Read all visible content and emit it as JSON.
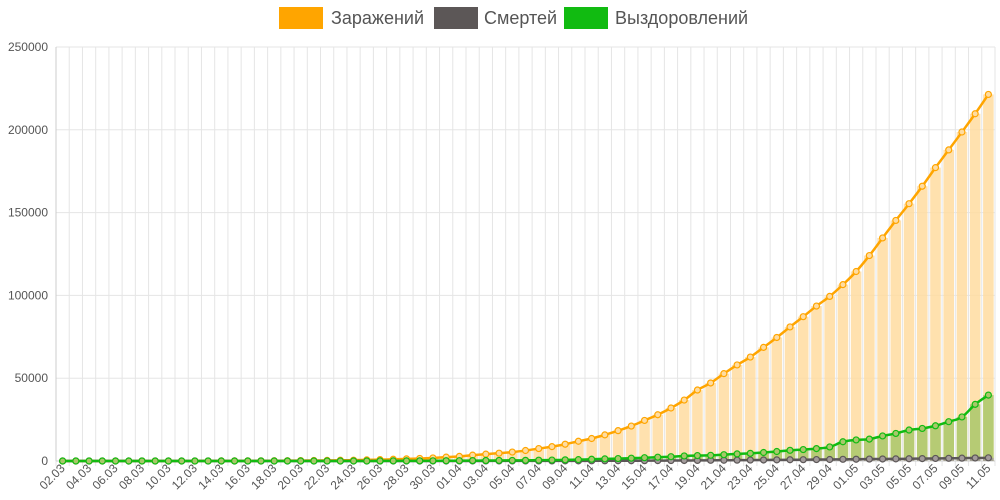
{
  "chart_data": {
    "type": "line",
    "title": "",
    "xlabel": "",
    "ylabel": "",
    "ylim": [
      0,
      250000
    ],
    "y_ticks": [
      0,
      50000,
      100000,
      150000,
      200000,
      250000
    ],
    "y_tick_labels": [
      "0",
      "50000",
      "100000",
      "150000",
      "200000",
      "250000"
    ],
    "grid": true,
    "legend_position": "top-center",
    "categories": [
      "02.03",
      "03.03",
      "04.03",
      "05.03",
      "06.03",
      "07.03",
      "08.03",
      "09.03",
      "10.03",
      "11.03",
      "12.03",
      "13.03",
      "14.03",
      "15.03",
      "16.03",
      "17.03",
      "18.03",
      "19.03",
      "20.03",
      "21.03",
      "22.03",
      "23.03",
      "24.03",
      "25.03",
      "26.03",
      "27.03",
      "28.03",
      "29.03",
      "30.03",
      "31.03",
      "01.04",
      "02.04",
      "03.04",
      "04.04",
      "05.04",
      "06.04",
      "07.04",
      "08.04",
      "09.04",
      "10.04",
      "11.04",
      "12.04",
      "13.04",
      "14.04",
      "15.04",
      "16.04",
      "17.04",
      "18.04",
      "19.04",
      "20.04",
      "21.04",
      "22.04",
      "23.04",
      "24.04",
      "25.04",
      "26.04",
      "27.04",
      "28.04",
      "29.04",
      "30.04",
      "01.05",
      "02.05",
      "03.05",
      "04.05",
      "05.05",
      "06.05",
      "07.05",
      "08.05",
      "09.05",
      "10.05",
      "11.05"
    ],
    "series": [
      {
        "name": "Заражений",
        "color": "#ffa500",
        "bar_color": "#ffdca0",
        "values": [
          3,
          3,
          3,
          3,
          4,
          10,
          14,
          17,
          20,
          28,
          34,
          45,
          59,
          63,
          93,
          114,
          147,
          199,
          253,
          306,
          367,
          438,
          495,
          658,
          840,
          1036,
          1264,
          1534,
          1836,
          2337,
          2777,
          3548,
          4149,
          4731,
          5389,
          6343,
          7497,
          8672,
          10131,
          11917,
          13584,
          15770,
          18328,
          21102,
          24490,
          27938,
          32008,
          36793,
          42853,
          47121,
          52763,
          57999,
          62773,
          68622,
          74588,
          80949,
          87147,
          93558,
          99399,
          106498,
          114431,
          124054,
          134687,
          145268,
          155370,
          165929,
          177160,
          187859,
          198676,
          209688,
          221344
        ]
      },
      {
        "name": "Смертей",
        "color": "#5c5757",
        "bar_color": "#a39b9b",
        "values": [
          0,
          0,
          0,
          0,
          0,
          0,
          0,
          0,
          0,
          0,
          0,
          0,
          0,
          0,
          0,
          0,
          0,
          0,
          1,
          1,
          1,
          1,
          1,
          3,
          3,
          4,
          4,
          8,
          9,
          17,
          24,
          30,
          34,
          43,
          45,
          47,
          58,
          63,
          76,
          94,
          106,
          130,
          148,
          170,
          198,
          232,
          273,
          313,
          361,
          405,
          456,
          513,
          555,
          615,
          681,
          747,
          794,
          867,
          907,
          1014,
          1073,
          1169,
          1222,
          1280,
          1356,
          1451,
          1537,
          1625,
          1723,
          1827,
          1915
        ]
      },
      {
        "name": "Выздоровлений",
        "color": "#11bb11",
        "bar_color": "#a9c76a",
        "values": [
          0,
          0,
          0,
          0,
          0,
          0,
          0,
          0,
          0,
          0,
          0,
          0,
          0,
          0,
          0,
          0,
          0,
          0,
          0,
          0,
          0,
          0,
          0,
          0,
          60,
          70,
          80,
          100,
          120,
          150,
          190,
          240,
          280,
          330,
          350,
          400,
          494,
          580,
          698,
          830,
          1045,
          1291,
          1470,
          1694,
          1986,
          2304,
          2590,
          3057,
          3291,
          3446,
          3812,
          4292,
          4624,
          5128,
          5742,
          6452,
          6902,
          7493,
          8506,
          11619,
          12727,
          13220,
          15133,
          16639,
          18705,
          19649,
          21276,
          23736,
          26608,
          34200,
          39801
        ]
      }
    ]
  }
}
